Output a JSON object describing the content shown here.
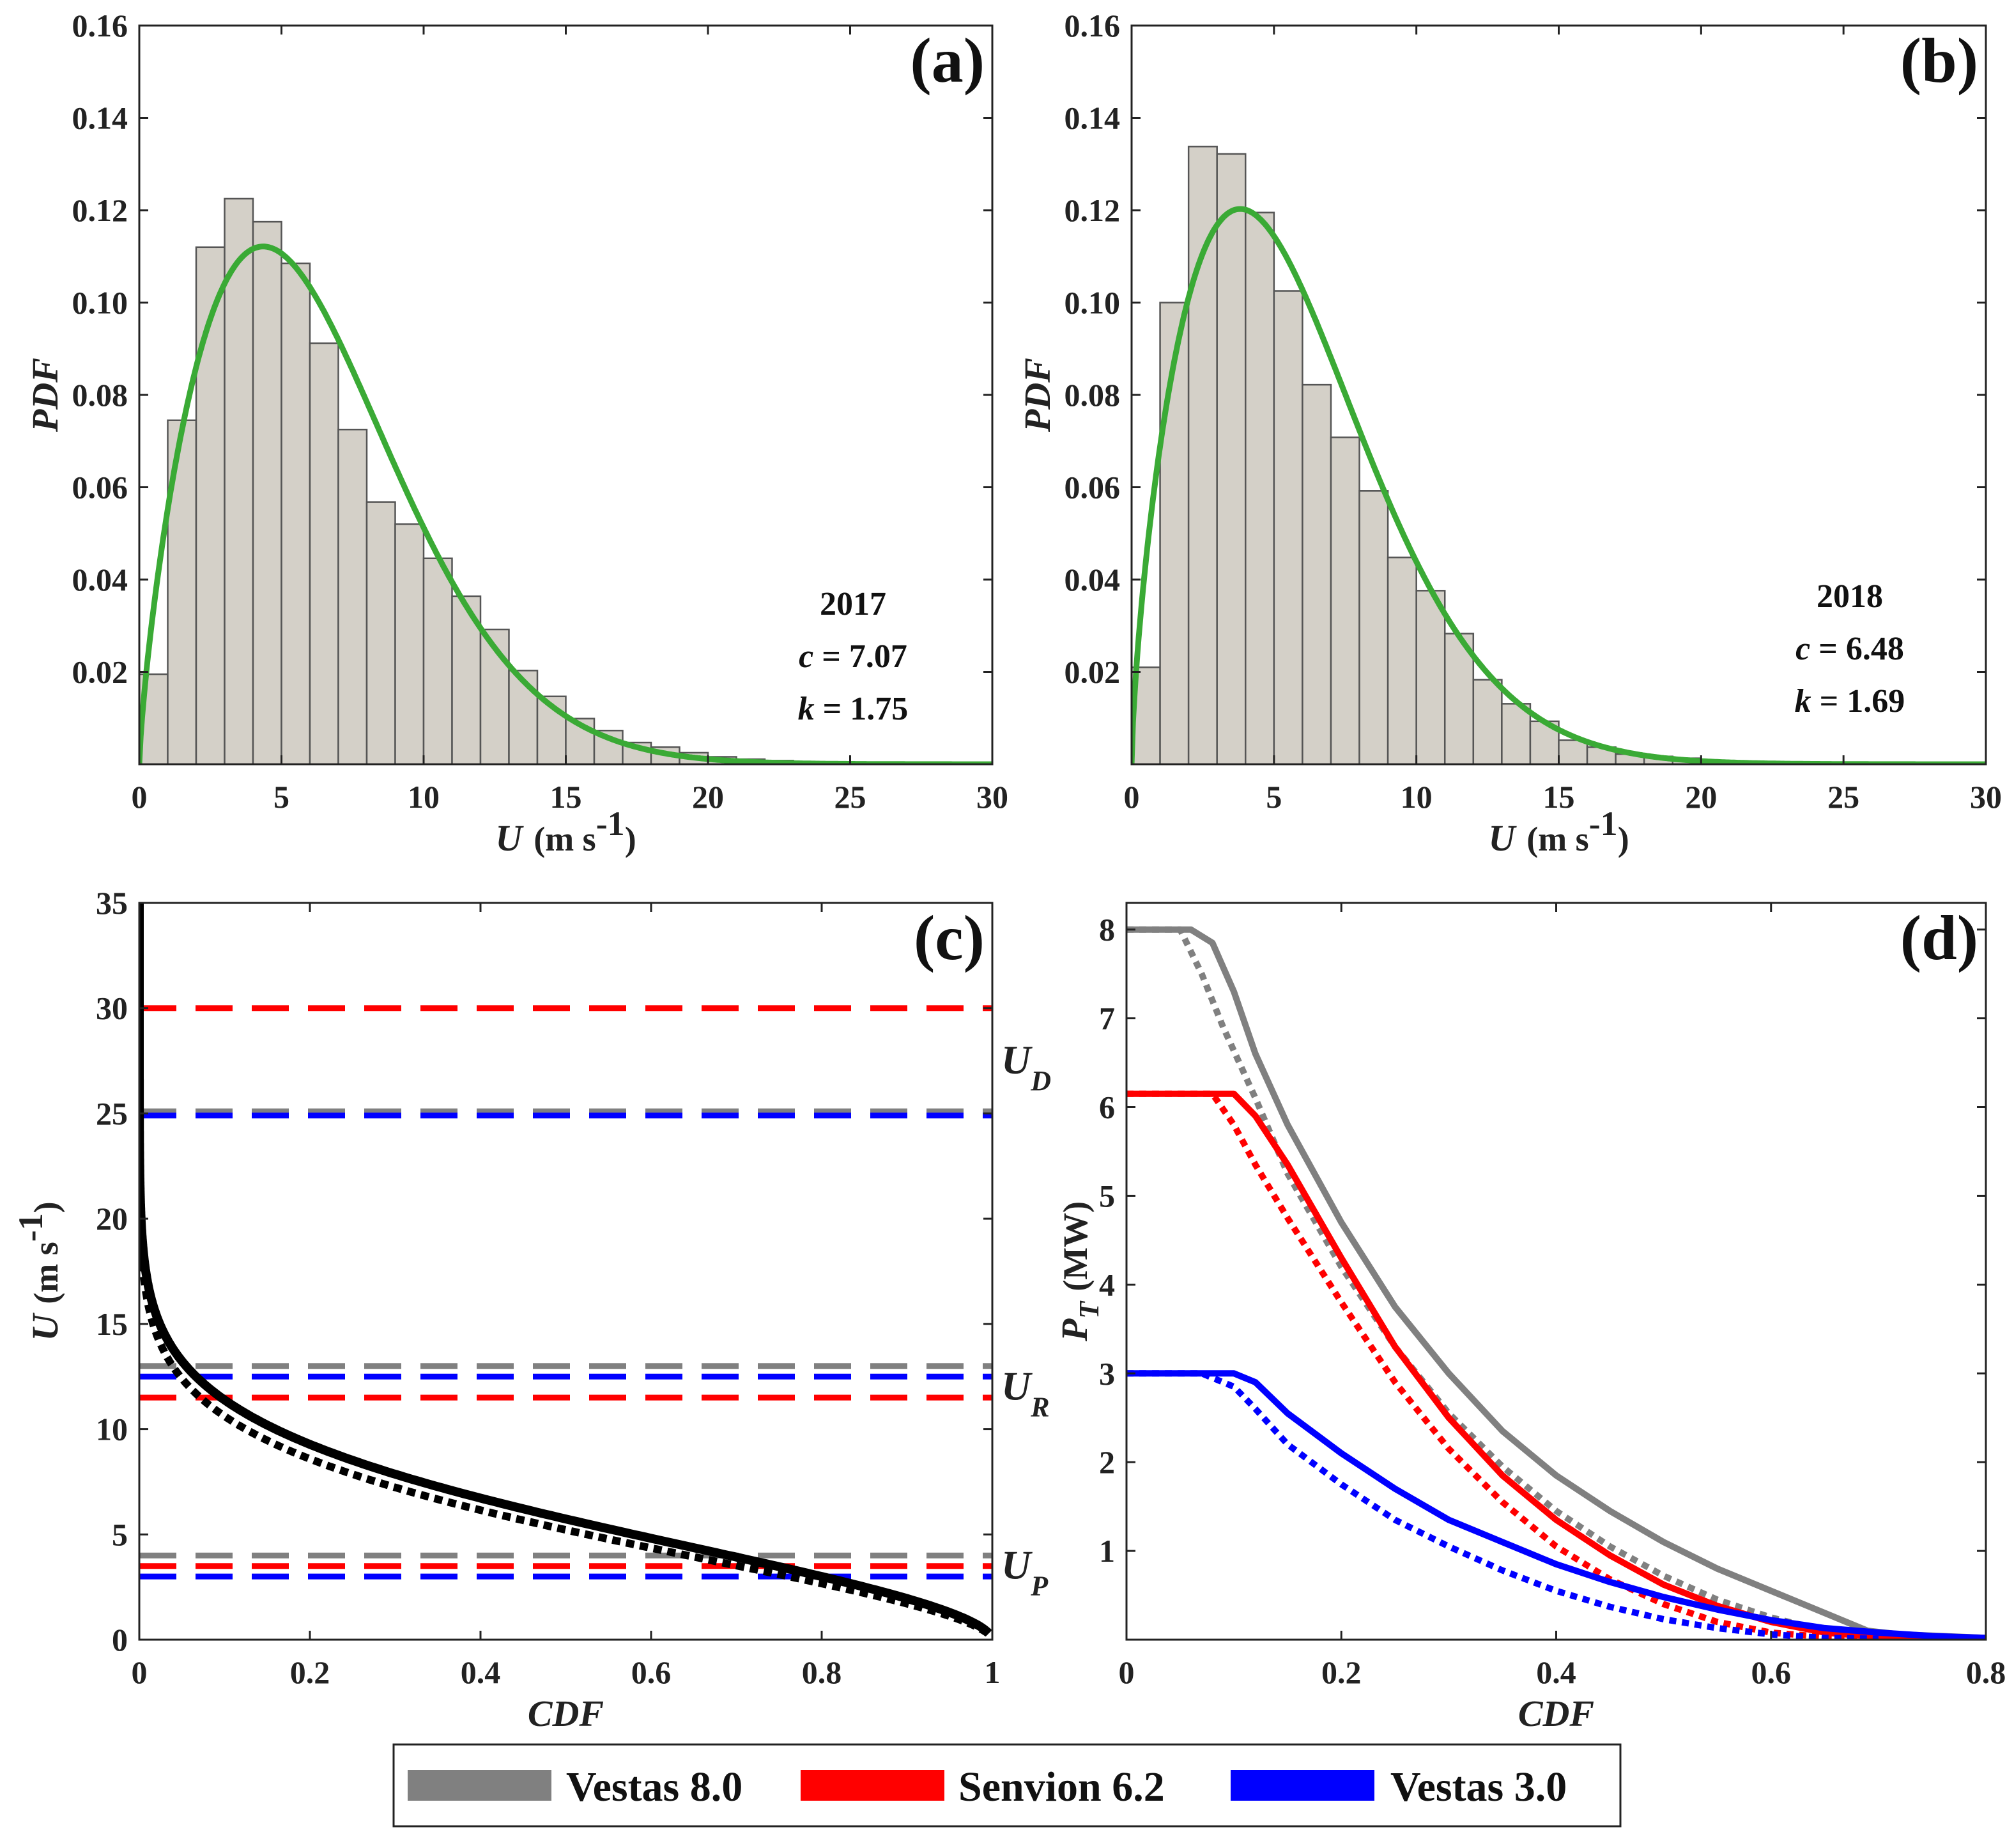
{
  "chart_data": [
    {
      "panel": "(a)",
      "type": "bar",
      "xlabel": "U",
      "xunit": "(m s",
      "xunit_sup": "-1",
      "xunit_end": ")",
      "ylabel": "PDF",
      "xlim": [
        0,
        30
      ],
      "ylim": [
        0,
        0.16
      ],
      "xticks": [
        "0",
        "5",
        "10",
        "15",
        "20",
        "25",
        "30"
      ],
      "yticks": [
        "0.02",
        "0.04",
        "0.06",
        "0.08",
        "0.10",
        "0.12",
        "0.14",
        "0.16"
      ],
      "bin_width": 1,
      "values": [
        0.0195,
        0.0745,
        0.112,
        0.1225,
        0.1175,
        0.1085,
        0.0912,
        0.0725,
        0.0568,
        0.052,
        0.0446,
        0.0364,
        0.0292,
        0.0203,
        0.0147,
        0.0099,
        0.0073,
        0.0047,
        0.0037,
        0.0025,
        0.0016,
        0.0011,
        0.0008,
        0.0005,
        0.0003,
        0.0002,
        0.0001,
        0.0001,
        0.0001,
        0.0001
      ],
      "fit": {
        "type": "weibull",
        "c": 7.07,
        "k": 1.75,
        "color": "#3aaa35"
      },
      "bar_color": "#d4d0c8",
      "annotation": {
        "year": "2017",
        "c_label": "c",
        "c_text": " = 7.07",
        "k_label": "k",
        "k_text": " = 1.75"
      }
    },
    {
      "panel": "(b)",
      "type": "bar",
      "xlabel": "U",
      "xunit": "(m s",
      "xunit_sup": "-1",
      "xunit_end": ")",
      "ylabel": "PDF",
      "xlim": [
        0,
        30
      ],
      "ylim": [
        0,
        0.16
      ],
      "xticks": [
        "0",
        "5",
        "10",
        "15",
        "20",
        "25",
        "30"
      ],
      "yticks": [
        "0.02",
        "0.04",
        "0.06",
        "0.08",
        "0.10",
        "0.12",
        "0.14",
        "0.16"
      ],
      "bin_width": 1,
      "values": [
        0.021,
        0.1,
        0.1338,
        0.1322,
        0.1195,
        0.1025,
        0.0822,
        0.0708,
        0.0592,
        0.0448,
        0.0376,
        0.0283,
        0.0183,
        0.0131,
        0.0093,
        0.0052,
        0.0037,
        0.0022,
        0.0017,
        0.0013,
        0.0008,
        0.0005,
        0.0003,
        0.0002,
        0.0002,
        0.0001,
        0.0001,
        0.0001,
        0.0001,
        0.0001
      ],
      "fit": {
        "type": "weibull",
        "c": 6.48,
        "k": 1.69,
        "color": "#3aaa35"
      },
      "bar_color": "#d4d0c8",
      "annotation": {
        "year": "2018",
        "c_label": "c",
        "c_text": " = 6.48",
        "k_label": "k",
        "k_text": " = 1.69"
      }
    },
    {
      "panel": "(c)",
      "type": "line",
      "xlabel": "CDF",
      "ylabel": "U",
      "yunit": "(m s",
      "yunit_sup": "-1",
      "yunit_end": ")",
      "xlim": [
        0,
        1
      ],
      "ylim": [
        0,
        35
      ],
      "xticks": [
        "0",
        "0.2",
        "0.4",
        "0.6",
        "0.8",
        "1"
      ],
      "yticks": [
        "0",
        "5",
        "10",
        "15",
        "20",
        "25",
        "30",
        "35"
      ],
      "series": [
        {
          "style": "solid",
          "weibull": {
            "c": 7.07,
            "k": 1.75
          },
          "color": "#000000"
        },
        {
          "style": "dotted",
          "weibull": {
            "c": 6.48,
            "k": 1.69
          },
          "color": "#000000"
        }
      ],
      "thresholds": [
        {
          "y": 30,
          "color": "#ff0000"
        },
        {
          "y": 25.1,
          "color": "#808080"
        },
        {
          "y": 24.9,
          "color": "#0000ff"
        },
        {
          "y": 13,
          "color": "#808080"
        },
        {
          "y": 12.5,
          "color": "#0000ff"
        },
        {
          "y": 11.5,
          "color": "#ff0000"
        },
        {
          "y": 4,
          "color": "#808080"
        },
        {
          "y": 3.5,
          "color": "#ff0000"
        },
        {
          "y": 3,
          "color": "#0000ff"
        }
      ],
      "threshold_labels": [
        {
          "text": "U",
          "sub": "D",
          "y": 27.5
        },
        {
          "text": "U",
          "sub": "R",
          "y": 12
        },
        {
          "text": "U",
          "sub": "P",
          "y": 3.5
        }
      ]
    },
    {
      "panel": "(d)",
      "type": "line",
      "xlabel": "CDF",
      "ylabel": "P",
      "ylabel_sub": "T",
      "yunit": "(MW)",
      "xlim": [
        0,
        0.8
      ],
      "ylim": [
        0,
        8.3
      ],
      "xticks": [
        "0",
        "0.2",
        "0.4",
        "0.6",
        "0.8"
      ],
      "yticks": [
        "1",
        "2",
        "3",
        "4",
        "5",
        "6",
        "7",
        "8"
      ],
      "series": [
        {
          "name": "Vestas 8.0",
          "style": "solid",
          "color": "#808080",
          "x": [
            0,
            0.06,
            0.08,
            0.1,
            0.12,
            0.15,
            0.2,
            0.25,
            0.3,
            0.35,
            0.4,
            0.45,
            0.5,
            0.55,
            0.6,
            0.65,
            0.69,
            0.72,
            0.8
          ],
          "y": [
            8.0,
            8.0,
            7.85,
            7.3,
            6.6,
            5.8,
            4.7,
            3.75,
            3.0,
            2.35,
            1.85,
            1.45,
            1.1,
            0.8,
            0.55,
            0.3,
            0.1,
            0.06,
            0.02
          ]
        },
        {
          "name": "Vestas 8.0",
          "style": "dotted",
          "color": "#808080",
          "x": [
            0,
            0.05,
            0.07,
            0.09,
            0.12,
            0.15,
            0.2,
            0.25,
            0.3,
            0.35,
            0.4,
            0.45,
            0.5,
            0.55,
            0.6,
            0.65,
            0.7,
            0.75,
            0.8
          ],
          "y": [
            8.0,
            8.0,
            7.5,
            6.9,
            6.1,
            5.25,
            4.2,
            3.3,
            2.55,
            1.95,
            1.45,
            1.05,
            0.72,
            0.45,
            0.25,
            0.1,
            0.04,
            0.02,
            0.01
          ]
        },
        {
          "name": "Senvion 6.2",
          "style": "solid",
          "color": "#ff0000",
          "x": [
            0,
            0.1,
            0.12,
            0.15,
            0.2,
            0.25,
            0.3,
            0.35,
            0.4,
            0.45,
            0.5,
            0.55,
            0.6,
            0.65,
            0.7,
            0.75
          ],
          "y": [
            6.15,
            6.15,
            5.9,
            5.35,
            4.3,
            3.3,
            2.5,
            1.85,
            1.35,
            0.95,
            0.62,
            0.38,
            0.2,
            0.08,
            0.03,
            0.01
          ]
        },
        {
          "name": "Senvion 6.2",
          "style": "dotted",
          "color": "#ff0000",
          "x": [
            0,
            0.08,
            0.1,
            0.12,
            0.15,
            0.2,
            0.25,
            0.3,
            0.35,
            0.4,
            0.45,
            0.5,
            0.55,
            0.6,
            0.65,
            0.7
          ],
          "y": [
            6.15,
            6.15,
            5.8,
            5.35,
            4.75,
            3.8,
            2.9,
            2.15,
            1.55,
            1.05,
            0.68,
            0.4,
            0.2,
            0.08,
            0.03,
            0.01
          ]
        },
        {
          "name": "Vestas 3.0",
          "style": "solid",
          "color": "#0000ff",
          "x": [
            0,
            0.1,
            0.12,
            0.15,
            0.2,
            0.25,
            0.3,
            0.35,
            0.4,
            0.45,
            0.5,
            0.55,
            0.6,
            0.65,
            0.7,
            0.75,
            0.8
          ],
          "y": [
            3.0,
            3.0,
            2.9,
            2.55,
            2.1,
            1.7,
            1.35,
            1.1,
            0.85,
            0.65,
            0.48,
            0.34,
            0.22,
            0.13,
            0.08,
            0.04,
            0.02
          ]
        },
        {
          "name": "Vestas 3.0",
          "style": "dotted",
          "color": "#0000ff",
          "x": [
            0,
            0.07,
            0.1,
            0.12,
            0.15,
            0.2,
            0.25,
            0.3,
            0.35,
            0.4,
            0.45,
            0.5,
            0.55,
            0.6,
            0.65,
            0.7
          ],
          "y": [
            3.0,
            3.0,
            2.85,
            2.6,
            2.2,
            1.75,
            1.35,
            1.05,
            0.78,
            0.55,
            0.37,
            0.23,
            0.13,
            0.06,
            0.02,
            0.01
          ]
        }
      ]
    }
  ],
  "legend": {
    "placement": "bottom-center",
    "items": [
      {
        "label": "Vestas 8.0",
        "color": "#808080"
      },
      {
        "label": "Senvion 6.2",
        "color": "#ff0000"
      },
      {
        "label": "Vestas 3.0",
        "color": "#0000ff"
      }
    ]
  }
}
